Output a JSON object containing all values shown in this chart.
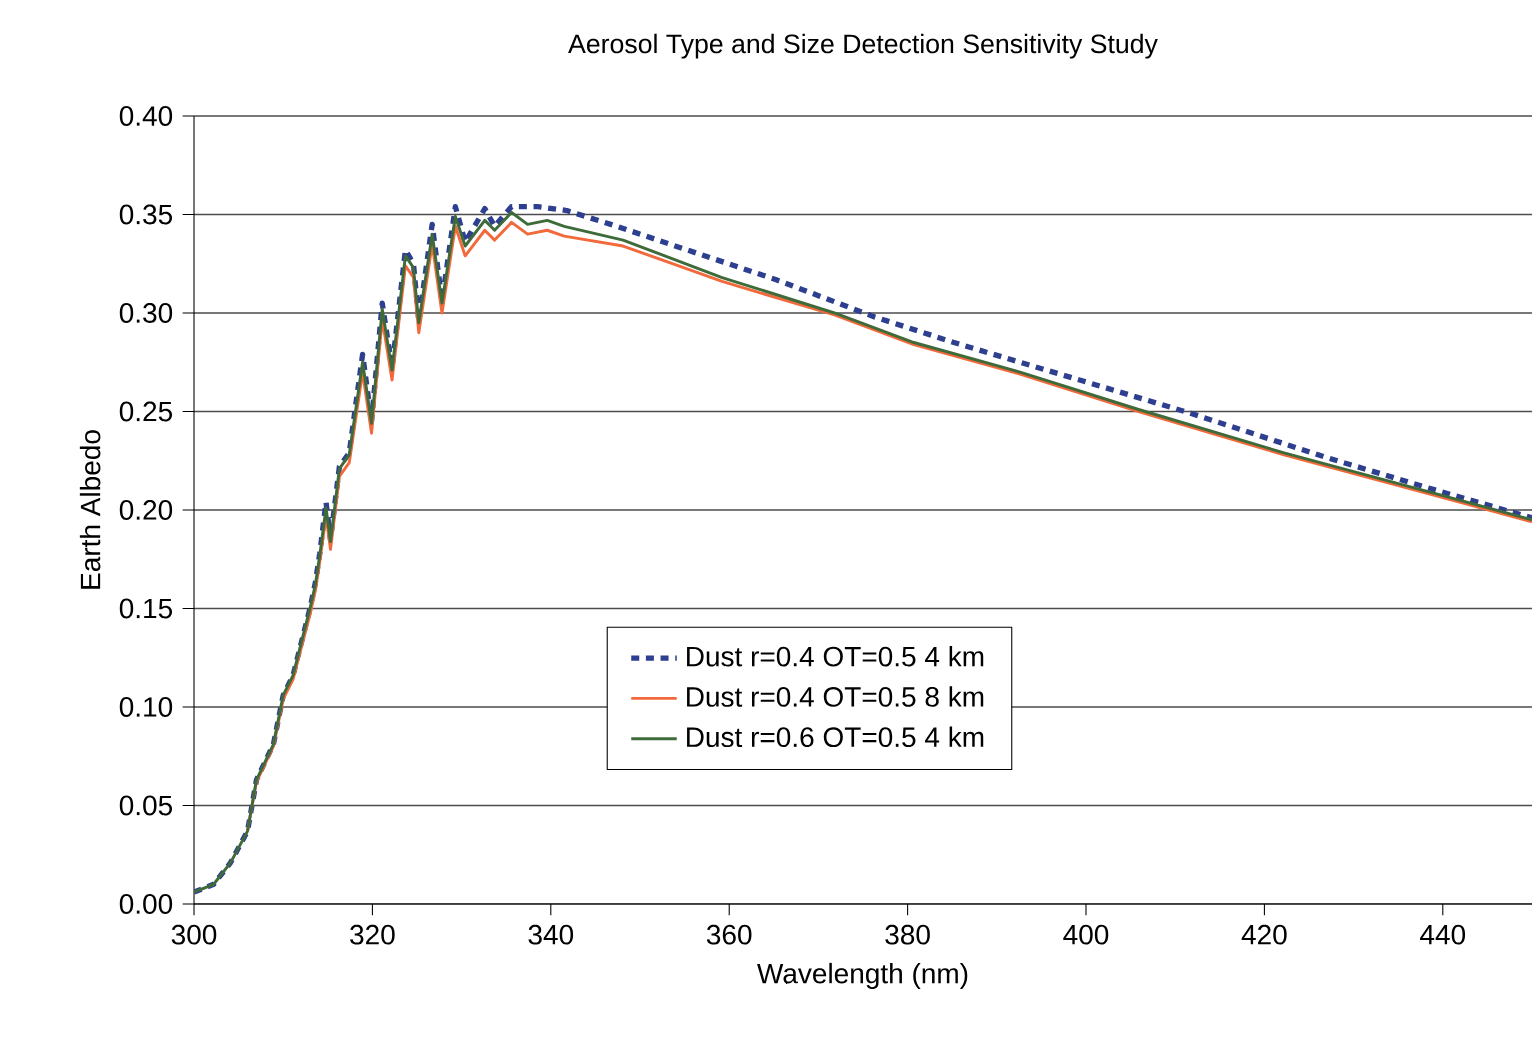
{
  "chart_data": {
    "type": "line",
    "title": "Aerosol Type and Size Detection Sensitivity Study",
    "xlabel": "Wavelength (nm)",
    "ylabel": "Earth Albedo",
    "xlim": [
      300,
      450
    ],
    "ylim": [
      0,
      0.4
    ],
    "xticks": [
      300,
      320,
      340,
      360,
      380,
      400,
      420,
      440
    ],
    "yticks": [
      {
        "value": 0,
        "label": "0.00"
      },
      {
        "value": 0.05,
        "label": "0.05"
      },
      {
        "value": 0.1,
        "label": "0.10"
      },
      {
        "value": 0.15,
        "label": "0.15"
      },
      {
        "value": 0.2,
        "label": "0.20"
      },
      {
        "value": 0.25,
        "label": "0.25"
      },
      {
        "value": 0.3,
        "label": "0.30"
      },
      {
        "value": 0.35,
        "label": "0.35"
      },
      {
        "value": 0.4,
        "label": "0.40"
      }
    ],
    "grid": "y",
    "legend": "bottom",
    "marker": "none",
    "series": [
      {
        "name": "Dust r=0.4 OT=0.5 4 km",
        "color": "#2e3f8f",
        "line_style": "dashed",
        "x": [
          300,
          302.2,
          304.1,
          306,
          307,
          308.9,
          310,
          311.1,
          313,
          313.6,
          314.1,
          314.8,
          315.3,
          316.3,
          317.4,
          318.9,
          319.9,
          321.1,
          322.2,
          323.7,
          324.6,
          325.2,
          326.7,
          327.8,
          329.3,
          330.4,
          332.6,
          333.7,
          335.6,
          338.5,
          341.8,
          347.4,
          353.3,
          365.2,
          376.3,
          385.2,
          400,
          411.8,
          426.7,
          438.5,
          450
        ],
        "values": [
          0.006,
          0.01,
          0.021,
          0.037,
          0.063,
          0.081,
          0.106,
          0.116,
          0.15,
          0.163,
          0.178,
          0.204,
          0.185,
          0.222,
          0.229,
          0.279,
          0.245,
          0.305,
          0.272,
          0.332,
          0.325,
          0.296,
          0.345,
          0.306,
          0.354,
          0.336,
          0.353,
          0.344,
          0.354,
          0.354,
          0.352,
          0.344,
          0.335,
          0.317,
          0.298,
          0.285,
          0.265,
          0.249,
          0.227,
          0.211,
          0.196
        ]
      },
      {
        "name": "Dust r=0.4 OT=0.5 8 km",
        "color": "#f26a3c",
        "line_style": "solid",
        "x": [
          306,
          307,
          308.9,
          310,
          311.1,
          313,
          313.6,
          314.1,
          314.8,
          315.3,
          316.3,
          317.4,
          318.9,
          319.9,
          321.1,
          322.2,
          323.7,
          324.6,
          325.2,
          326.7,
          327.8,
          329.3,
          330.4,
          332.6,
          333.7,
          335.6,
          337.4,
          339.6,
          341.5,
          348.1,
          359.2,
          371.8,
          380.7,
          392.6,
          405.9,
          422.2,
          437,
          450
        ],
        "values": [
          0.037,
          0.062,
          0.08,
          0.104,
          0.114,
          0.147,
          0.159,
          0.174,
          0.197,
          0.18,
          0.217,
          0.224,
          0.27,
          0.239,
          0.297,
          0.266,
          0.324,
          0.318,
          0.29,
          0.335,
          0.3,
          0.344,
          0.329,
          0.342,
          0.337,
          0.346,
          0.34,
          0.342,
          0.339,
          0.334,
          0.316,
          0.299,
          0.284,
          0.269,
          0.25,
          0.228,
          0.21,
          0.194
        ]
      },
      {
        "name": "Dust r=0.6 OT=0.5 4 km",
        "color": "#3f6b3a",
        "line_style": "solid",
        "x": [
          300,
          302.2,
          304.1,
          306,
          307,
          308.9,
          310,
          311.1,
          313,
          313.6,
          314.1,
          314.8,
          315.3,
          316.3,
          317.4,
          318.9,
          319.9,
          321.1,
          322.2,
          323.7,
          324.6,
          325.2,
          326.7,
          327.8,
          329.3,
          330.4,
          332.6,
          333.7,
          335.6,
          337.4,
          339.6,
          341.5,
          348.1,
          359.2,
          371.8,
          380.7,
          392.6,
          405.9,
          422.2,
          437,
          450
        ],
        "values": [
          0.006,
          0.01,
          0.021,
          0.037,
          0.063,
          0.081,
          0.106,
          0.116,
          0.15,
          0.162,
          0.177,
          0.201,
          0.184,
          0.221,
          0.228,
          0.275,
          0.244,
          0.302,
          0.271,
          0.329,
          0.323,
          0.295,
          0.34,
          0.305,
          0.349,
          0.334,
          0.347,
          0.342,
          0.351,
          0.345,
          0.347,
          0.344,
          0.337,
          0.318,
          0.3,
          0.285,
          0.27,
          0.251,
          0.229,
          0.211,
          0.195
        ]
      }
    ]
  }
}
